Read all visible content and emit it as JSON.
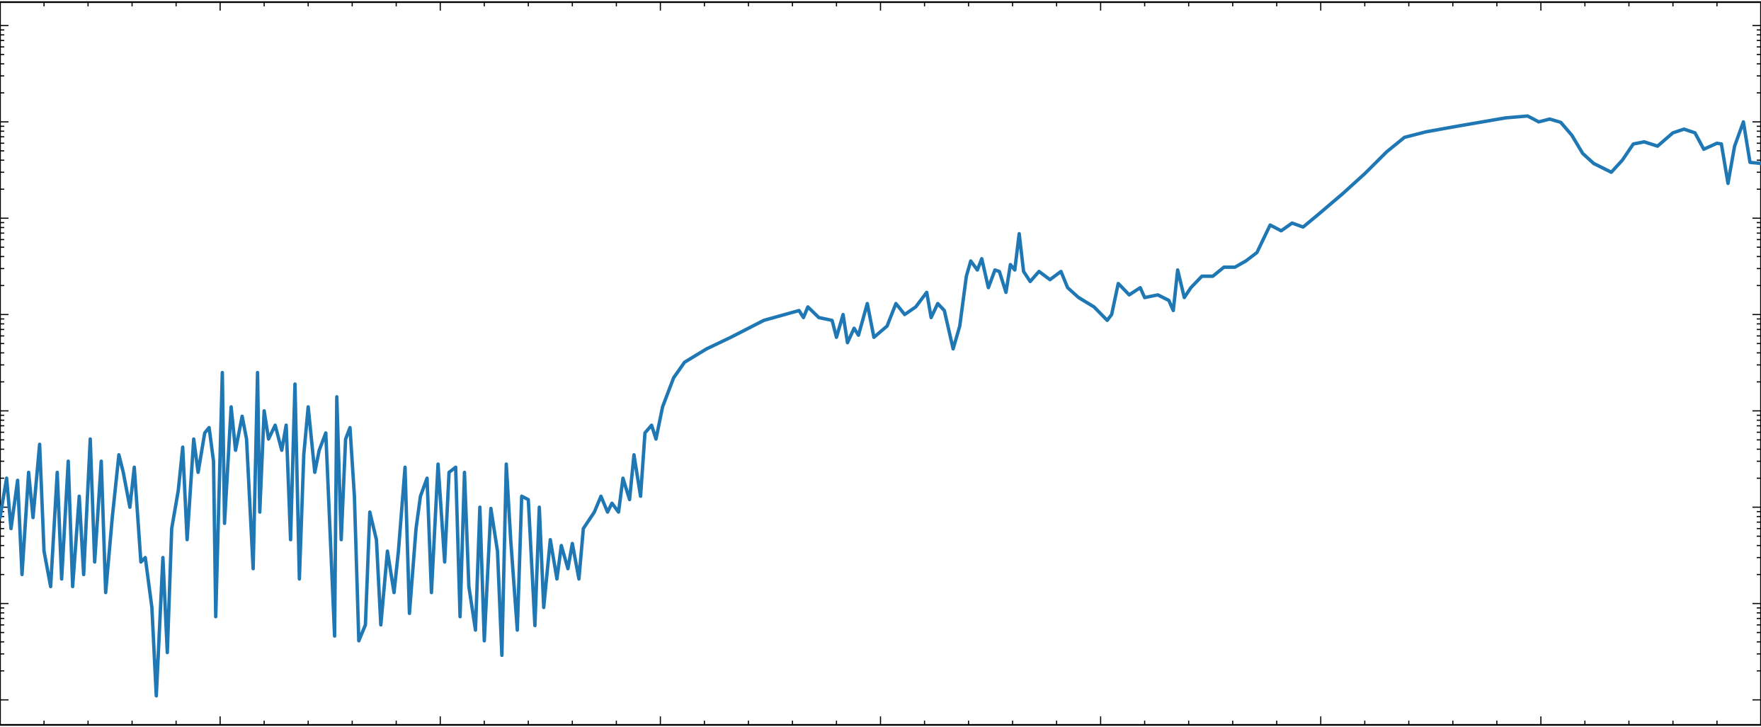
{
  "chart_data": {
    "type": "line",
    "color": "#1f77b4",
    "y_scale": "log",
    "xlim": [
      0,
      8
    ],
    "xticks": [
      0,
      1,
      2,
      3,
      4,
      5,
      6,
      7,
      8
    ],
    "ylim": [
      0.55,
      17500000
    ],
    "yticks": [
      1,
      10,
      100,
      1000,
      10000,
      100000,
      1000000,
      10000000
    ],
    "x": [
      0,
      0.03,
      0.05,
      0.08,
      0.1,
      0.13,
      0.15,
      0.18,
      0.2,
      0.23,
      0.26,
      0.28,
      0.31,
      0.33,
      0.36,
      0.38,
      0.41,
      0.43,
      0.46,
      0.48,
      0.51,
      0.54,
      0.56,
      0.59,
      0.61,
      0.64,
      0.66,
      0.69,
      0.71,
      0.74,
      0.76,
      0.78,
      0.81,
      0.83,
      0.85,
      0.88,
      0.9,
      0.93,
      0.95,
      0.97,
      0.98,
      1.01,
      1.02,
      1.05,
      1.07,
      1.1,
      1.12,
      1.15,
      1.17,
      1.18,
      1.2,
      1.22,
      1.25,
      1.28,
      1.3,
      1.32,
      1.34,
      1.36,
      1.38,
      1.4,
      1.43,
      1.45,
      1.48,
      1.52,
      1.53,
      1.55,
      1.57,
      1.59,
      1.61,
      1.63,
      1.66,
      1.68,
      1.71,
      1.73,
      1.76,
      1.79,
      1.81,
      1.84,
      1.86,
      1.89,
      1.91,
      1.94,
      1.96,
      1.99,
      2.02,
      2.04,
      2.07,
      2.09,
      2.11,
      2.13,
      2.16,
      2.18,
      2.2,
      2.23,
      2.26,
      2.28,
      2.3,
      2.32,
      2.35,
      2.37,
      2.4,
      2.43,
      2.45,
      2.47,
      2.5,
      2.53,
      2.55,
      2.58,
      2.6,
      2.63,
      2.65,
      2.7,
      2.73,
      2.76,
      2.78,
      2.81,
      2.83,
      2.86,
      2.88,
      2.91,
      2.93,
      2.96,
      2.98,
      3.01,
      3.06,
      3.11,
      3.21,
      3.32,
      3.47,
      3.63,
      3.65,
      3.67,
      3.72,
      3.78,
      3.8,
      3.83,
      3.85,
      3.88,
      3.9,
      3.94,
      3.97,
      4.03,
      4.07,
      4.11,
      4.16,
      4.21,
      4.23,
      4.26,
      4.29,
      4.33,
      4.36,
      4.39,
      4.41,
      4.44,
      4.46,
      4.49,
      4.52,
      4.54,
      4.57,
      4.59,
      4.61,
      4.63,
      4.65,
      4.68,
      4.72,
      4.77,
      4.82,
      4.85,
      4.9,
      4.97,
      5.03,
      5.05,
      5.08,
      5.13,
      5.18,
      5.2,
      5.26,
      5.31,
      5.33,
      5.35,
      5.38,
      5.41,
      5.46,
      5.51,
      5.56,
      5.61,
      5.66,
      5.71,
      5.77,
      5.82,
      5.87,
      5.92,
      5.99,
      6.1,
      6.2,
      6.3,
      6.38,
      6.48,
      6.63,
      6.84,
      6.94,
      6.99,
      7.04,
      7.09,
      7.14,
      7.19,
      7.24,
      7.32,
      7.37,
      7.42,
      7.47,
      7.53,
      7.6,
      7.65,
      7.7,
      7.74,
      7.8,
      7.82,
      7.85,
      7.88,
      7.92,
      7.95,
      8.0
    ],
    "values": [
      78,
      200,
      60,
      190,
      20,
      230,
      78,
      450,
      35,
      15,
      230,
      18,
      300,
      15,
      130,
      20,
      510,
      27,
      300,
      13,
      78,
      350,
      230,
      100,
      260,
      27,
      30,
      9.1,
      1.1,
      30,
      3.1,
      60,
      150,
      420,
      46,
      510,
      230,
      590,
      670,
      300,
      7.3,
      2500,
      68,
      1100,
      390,
      880,
      510,
      23,
      2500,
      89,
      1000,
      510,
      710,
      390,
      710,
      46,
      1900,
      18,
      350,
      1100,
      230,
      390,
      590,
      4.6,
      1400,
      46,
      510,
      670,
      130,
      4.1,
      6.0,
      89,
      46,
      6.0,
      35,
      13,
      35,
      260,
      7.9,
      60,
      130,
      200,
      13,
      280,
      27,
      230,
      260,
      7.3,
      230,
      15,
      5.3,
      100,
      4.1,
      97,
      35,
      2.9,
      280,
      46,
      5.3,
      130,
      120,
      5.9,
      100,
      9.1,
      46,
      18,
      40,
      23,
      42,
      18,
      60,
      89,
      130,
      89,
      110,
      89,
      200,
      120,
      350,
      130,
      590,
      710,
      510,
      1100,
      2200,
      3200,
      4400,
      5800,
      8700,
      11000,
      9300,
      12000,
      9300,
      8700,
      5800,
      10000,
      5100,
      7200,
      6100,
      13000,
      5800,
      7600,
      13000,
      10000,
      12000,
      17000,
      9300,
      13000,
      11000,
      4400,
      7600,
      25000,
      36000,
      29000,
      38000,
      19000,
      29000,
      28000,
      17000,
      33000,
      29000,
      69000,
      28000,
      22000,
      28000,
      23000,
      28000,
      19000,
      15000,
      12000,
      8700,
      10000,
      21000,
      16000,
      19000,
      15000,
      16000,
      14000,
      11000,
      29000,
      15000,
      19000,
      25000,
      25000,
      31000,
      31000,
      36000,
      44000,
      85000,
      74000,
      89000,
      81000,
      110000,
      180000,
      290000,
      490000,
      690000,
      790000,
      910000,
      1100000,
      1150000,
      1000000,
      1070000,
      990000,
      730000,
      470000,
      370000,
      300000,
      400000,
      590000,
      620000,
      560000,
      770000,
      840000,
      770000,
      520000,
      600000,
      590000,
      230000,
      560000,
      1000000,
      380000,
      370000
    ]
  }
}
